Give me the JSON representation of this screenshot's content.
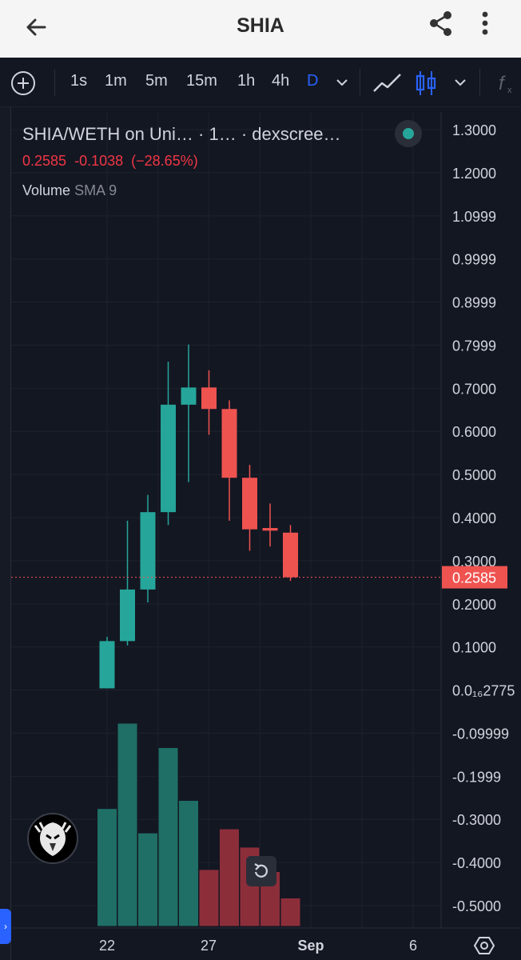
{
  "app": {
    "title": "SHIA",
    "icons": {
      "back": "arrow-left-icon",
      "share": "share-icon",
      "more": "more-vertical-icon"
    }
  },
  "toolbar": {
    "add_icon": "plus-circle-icon",
    "intervals": [
      "1s",
      "1m",
      "5m",
      "15m",
      "1h",
      "4h",
      "D"
    ],
    "active_interval": "D",
    "icons": [
      "chevron-down-icon",
      "line-chart-icon",
      "candlestick-icon",
      "chevron-down-icon",
      "indicators-fx-icon"
    ]
  },
  "legend": {
    "title": "SHIA/WETH on Uni…   · 1…  · dexscree…",
    "last": "0.2585",
    "change": "-0.1038",
    "change_pct": "(−28.65%)",
    "volume_label": "Volume",
    "volume_sma": "SMA 9"
  },
  "colors": {
    "up": "#26a69a",
    "down": "#ef5350",
    "vol_up": "#1f6f66",
    "vol_down": "#8c2e3a",
    "bg": "#131722",
    "grid": "#1e222d",
    "text": "#d1d4dc",
    "accent": "#2962ff"
  },
  "chart_data": {
    "type": "candlestick",
    "price_axis": {
      "ticks": [
        "1.3000",
        "1.2000",
        "1.0999",
        "0.9999",
        "0.8999",
        "0.7999",
        "0.7000",
        "0.6000",
        "0.5000",
        "0.4000",
        "0.3000",
        "0.2000",
        "0.1000",
        "0.0₁₆2775",
        "-0.09999",
        "-0.1999",
        "-0.3000",
        "-0.4000",
        "-0.5000"
      ],
      "range": [
        -0.55,
        1.32
      ],
      "last_price_label": "0.2585",
      "last_price": 0.2585
    },
    "time_axis": {
      "labels": [
        "22",
        "27",
        "Sep",
        "6"
      ]
    },
    "candles": [
      {
        "open": 0.0,
        "high": 0.12,
        "low": 0.0,
        "close": 0.11,
        "direction": "up"
      },
      {
        "open": 0.11,
        "high": 0.39,
        "low": 0.1,
        "close": 0.23,
        "direction": "up"
      },
      {
        "open": 0.23,
        "high": 0.45,
        "low": 0.2,
        "close": 0.41,
        "direction": "up"
      },
      {
        "open": 0.41,
        "high": 0.76,
        "low": 0.38,
        "close": 0.66,
        "direction": "up"
      },
      {
        "open": 0.66,
        "high": 0.8,
        "low": 0.48,
        "close": 0.7,
        "direction": "up"
      },
      {
        "open": 0.7,
        "high": 0.74,
        "low": 0.59,
        "close": 0.65,
        "direction": "down"
      },
      {
        "open": 0.65,
        "high": 0.67,
        "low": 0.39,
        "close": 0.49,
        "direction": "down"
      },
      {
        "open": 0.49,
        "high": 0.52,
        "low": 0.32,
        "close": 0.37,
        "direction": "down"
      },
      {
        "open": 0.373,
        "high": 0.43,
        "low": 0.33,
        "close": 0.367,
        "direction": "down"
      },
      {
        "open": 0.3623,
        "high": 0.38,
        "low": 0.25,
        "close": 0.2585,
        "direction": "down"
      }
    ],
    "volume": [
      0.58,
      1.0,
      0.46,
      0.88,
      0.62,
      0.28,
      0.48,
      0.39,
      0.27,
      0.14
    ],
    "xlabel": "",
    "ylabel": ""
  },
  "controls": {
    "avatar_icon": "eagle-logo-icon",
    "reset_icon": "reset-icon",
    "settings_icon": "settings-hex-icon",
    "left_tab_glyph": "›"
  }
}
